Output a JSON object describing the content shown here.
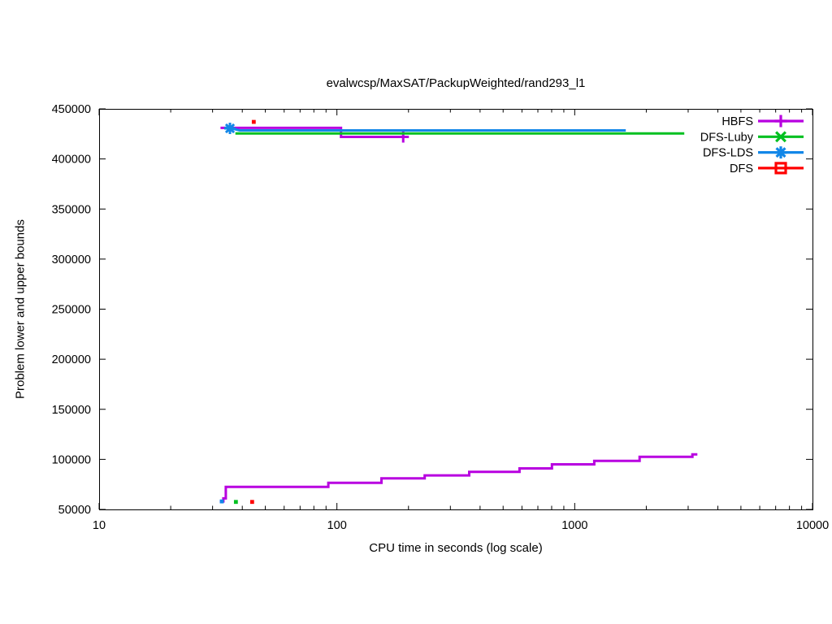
{
  "chart_data": {
    "type": "line",
    "title": "evalwcsp/MaxSAT/PackupWeighted/rand293_l1",
    "xlabel": "CPU time in seconds (log scale)",
    "ylabel": "Problem lower and upper bounds",
    "x_scale": "log",
    "x_range": [
      10,
      10000
    ],
    "y_range": [
      50000,
      450000
    ],
    "x_ticks": [
      10,
      100,
      1000,
      10000
    ],
    "y_ticks": [
      50000,
      100000,
      150000,
      200000,
      250000,
      300000,
      350000,
      400000,
      450000
    ],
    "grid": false,
    "legend_position": "top-right-inside",
    "axis_color": "#000000",
    "series": [
      {
        "name": "HBFS",
        "color": "#B800E0",
        "marker": "plus",
        "lines": [
          [
            [
              32.4,
              431000
            ],
            [
              104,
              431000
            ],
            [
              104,
              422000
            ],
            [
              190,
              422000
            ]
          ],
          [
            [
              32.2,
              58000
            ],
            [
              33.3,
              58000
            ],
            [
              33.3,
              61000
            ],
            [
              34.1,
              61000
            ],
            [
              34.1,
              72500
            ],
            [
              92,
              72500
            ],
            [
              92,
              76500
            ],
            [
              154,
              76500
            ],
            [
              154,
              81000
            ],
            [
              234,
              81000
            ],
            [
              234,
              84000
            ],
            [
              360,
              84000
            ],
            [
              360,
              87500
            ],
            [
              586,
              87500
            ],
            [
              586,
              91000
            ],
            [
              802,
              91000
            ],
            [
              802,
              95000
            ],
            [
              1208,
              95000
            ],
            [
              1208,
              98500
            ],
            [
              1875,
              98500
            ],
            [
              1875,
              102500
            ],
            [
              3126,
              102500
            ],
            [
              3126,
              105000
            ],
            [
              3280,
              105000
            ]
          ]
        ],
        "markers": [
          [
            190,
            422000
          ]
        ],
        "dots": []
      },
      {
        "name": "DFS-Luby",
        "color": "#00C020",
        "marker": "cross",
        "lines": [
          [
            [
              37.4,
              425500
            ],
            [
              2890,
              425500
            ]
          ]
        ],
        "markers": [],
        "dots": [
          [
            37.6,
            57500
          ]
        ]
      },
      {
        "name": "DFS-LDS",
        "color": "#1287E8",
        "marker": "star",
        "lines": [
          [
            [
              33.7,
              431000
            ],
            [
              35.5,
              431000
            ],
            [
              39,
              428500
            ],
            [
              1640,
              428500
            ]
          ]
        ],
        "markers": [
          [
            35.5,
            430500
          ]
        ],
        "dots": [
          [
            32.8,
            58000
          ]
        ]
      },
      {
        "name": "DFS",
        "color": "#FF0000",
        "marker": "square-open",
        "lines": [],
        "markers": [],
        "dots": [
          [
            44.7,
            437000
          ],
          [
            44,
            57500
          ]
        ]
      }
    ]
  }
}
